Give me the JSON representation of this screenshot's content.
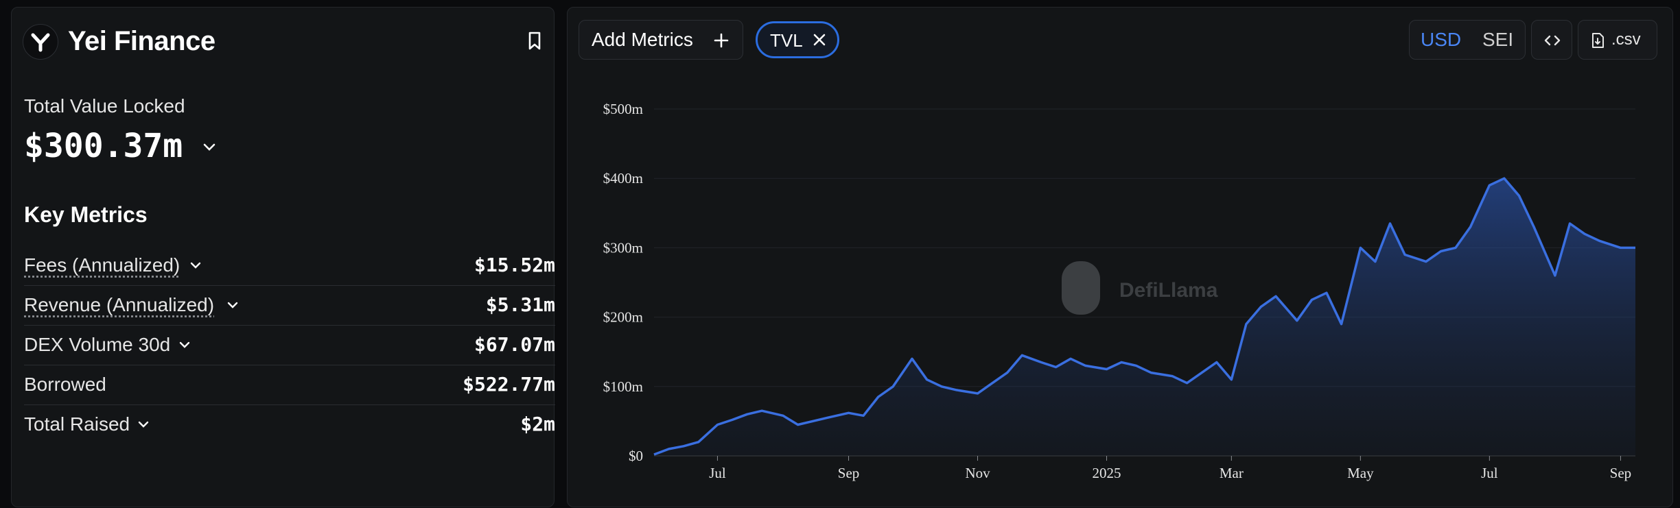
{
  "protocol": {
    "name": "Yei Finance",
    "logo_icon": "yei-logo-icon",
    "bookmark_icon": "bookmark-icon"
  },
  "tvl": {
    "label": "Total Value Locked",
    "value": "$300.37m"
  },
  "key_metrics": {
    "title": "Key Metrics",
    "items": [
      {
        "label": "Fees (Annualized)",
        "value": "$15.52m",
        "dropdown": true,
        "dotted": true
      },
      {
        "label": "Revenue (Annualized)",
        "value": "$5.31m",
        "dropdown": true,
        "dotted": true
      },
      {
        "label": "DEX Volume 30d",
        "value": "$67.07m",
        "dropdown": true,
        "dotted": false
      },
      {
        "label": "Borrowed",
        "value": "$522.77m",
        "dropdown": false,
        "dotted": false
      },
      {
        "label": "Total Raised",
        "value": "$2m",
        "dropdown": true,
        "dotted": false
      }
    ]
  },
  "toolbar": {
    "add_metrics_label": "Add Metrics",
    "active_metric": "TVL",
    "currency_options": [
      "USD",
      "SEI"
    ],
    "currency_selected": "USD",
    "csv_label": ".csv"
  },
  "colors": {
    "accent": "#4a86f5",
    "line": "#3a6fe0",
    "panel": "#131517",
    "background": "#0a0b0d"
  },
  "chart_data": {
    "type": "area",
    "title": "",
    "xlabel": "",
    "ylabel": "",
    "ylim": [
      0,
      500
    ],
    "y_ticks": [
      "$0",
      "$100m",
      "$200m",
      "$300m",
      "$400m",
      "$500m"
    ],
    "x_ticks": [
      "Jul",
      "Sep",
      "Nov",
      "2025",
      "Mar",
      "May",
      "Jul",
      "Sep"
    ],
    "grid": true,
    "series": [
      {
        "x": [
          "2024-06-01",
          "2024-06-08",
          "2024-06-15",
          "2024-06-22",
          "2024-07-01",
          "2024-07-08",
          "2024-07-15",
          "2024-07-22",
          "2024-08-01",
          "2024-08-08",
          "2024-08-15",
          "2024-08-22",
          "2024-09-01",
          "2024-09-08",
          "2024-09-15",
          "2024-09-22",
          "2024-10-01",
          "2024-10-08",
          "2024-10-15",
          "2024-10-22",
          "2024-11-01",
          "2024-11-08",
          "2024-11-15",
          "2024-11-22",
          "2024-12-01",
          "2024-12-08",
          "2024-12-15",
          "2024-12-22",
          "2025-01-01",
          "2025-01-08",
          "2025-01-15",
          "2025-01-22",
          "2025-02-01",
          "2025-02-08",
          "2025-02-15",
          "2025-02-22",
          "2025-03-01",
          "2025-03-08",
          "2025-03-15",
          "2025-03-22",
          "2025-04-01",
          "2025-04-08",
          "2025-04-15",
          "2025-04-22",
          "2025-05-01",
          "2025-05-08",
          "2025-05-15",
          "2025-05-22",
          "2025-06-01",
          "2025-06-08",
          "2025-06-15",
          "2025-06-22",
          "2025-07-01",
          "2025-07-08",
          "2025-07-15",
          "2025-07-22",
          "2025-08-01",
          "2025-08-08",
          "2025-08-15",
          "2025-08-22",
          "2025-09-01",
          "2025-09-08"
        ],
        "values": [
          2,
          10,
          14,
          20,
          45,
          52,
          60,
          65,
          58,
          45,
          50,
          55,
          62,
          58,
          85,
          100,
          140,
          110,
          100,
          95,
          90,
          105,
          120,
          145,
          135,
          128,
          140,
          130,
          125,
          135,
          130,
          120,
          115,
          105,
          120,
          135,
          110,
          190,
          215,
          230,
          195,
          225,
          235,
          190,
          300,
          280,
          335,
          290,
          280,
          295,
          300,
          330,
          390,
          400,
          375,
          330,
          260,
          335,
          320,
          310,
          300,
          300
        ]
      }
    ]
  }
}
